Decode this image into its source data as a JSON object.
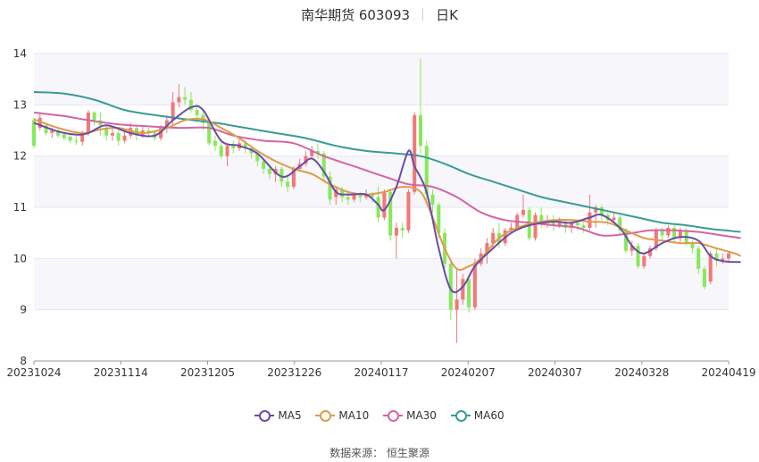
{
  "header": {
    "title": "南华期货 603093",
    "period": "日K"
  },
  "source": "数据来源： 恒生聚源",
  "colors": {
    "up": "#f0787a",
    "down": "#88e85c",
    "ma5": "#6b4ca6",
    "ma10": "#e09a4a",
    "ma30": "#d464a4",
    "ma60": "#3a9a96",
    "grid": "#e6e6f0",
    "band": "#f6f6fb"
  },
  "chart_data": {
    "type": "candlestick",
    "ylim": [
      8,
      14
    ],
    "yticks": [
      8,
      9,
      10,
      11,
      12,
      13,
      14
    ],
    "xticks": [
      "20231024",
      "20231114",
      "20231205",
      "20231226",
      "20240117",
      "20240207",
      "20240307",
      "20240328",
      "20240419"
    ],
    "legend": [
      "MA5",
      "MA10",
      "MA30",
      "MA60"
    ],
    "legend_position": "bottom",
    "candles": [
      [
        12.7,
        12.2,
        12.75,
        12.15
      ],
      [
        12.55,
        12.75,
        12.85,
        12.5
      ],
      [
        12.6,
        12.45,
        12.65,
        12.4
      ],
      [
        12.45,
        12.5,
        12.55,
        12.35
      ],
      [
        12.5,
        12.4,
        12.55,
        12.35
      ],
      [
        12.42,
        12.35,
        12.48,
        12.3
      ],
      [
        12.38,
        12.3,
        12.45,
        12.25
      ],
      [
        12.3,
        12.28,
        12.4,
        12.22
      ],
      [
        12.28,
        12.45,
        12.5,
        12.2
      ],
      [
        12.45,
        12.85,
        12.9,
        12.4
      ],
      [
        12.85,
        12.7,
        12.88,
        12.6
      ],
      [
        12.7,
        12.6,
        12.85,
        12.4
      ],
      [
        12.55,
        12.4,
        12.6,
        12.3
      ],
      [
        12.4,
        12.45,
        12.55,
        12.3
      ],
      [
        12.45,
        12.3,
        12.5,
        12.2
      ],
      [
        12.3,
        12.4,
        12.5,
        12.25
      ],
      [
        12.4,
        12.55,
        12.65,
        12.35
      ],
      [
        12.55,
        12.4,
        12.6,
        12.3
      ],
      [
        12.4,
        12.5,
        12.6,
        12.35
      ],
      [
        12.5,
        12.45,
        12.55,
        12.4
      ],
      [
        12.45,
        12.35,
        12.5,
        12.3
      ],
      [
        12.35,
        12.55,
        12.6,
        12.3
      ],
      [
        12.55,
        12.7,
        12.8,
        12.45
      ],
      [
        12.7,
        13.05,
        13.25,
        12.6
      ],
      [
        13.05,
        13.15,
        13.4,
        12.95
      ],
      [
        13.15,
        13.1,
        13.35,
        13.0
      ],
      [
        13.1,
        12.9,
        13.25,
        12.85
      ],
      [
        12.9,
        12.8,
        13.0,
        12.7
      ],
      [
        12.8,
        12.65,
        12.9,
        12.5
      ],
      [
        12.65,
        12.25,
        12.7,
        12.2
      ],
      [
        12.3,
        12.2,
        12.4,
        12.1
      ],
      [
        12.2,
        12.0,
        12.3,
        11.95
      ],
      [
        12.0,
        12.2,
        12.25,
        11.8
      ],
      [
        12.2,
        12.15,
        12.3,
        12.05
      ],
      [
        12.15,
        12.25,
        12.35,
        12.1
      ],
      [
        12.25,
        12.15,
        12.3,
        12.05
      ],
      [
        12.15,
        12.05,
        12.2,
        11.95
      ],
      [
        12.05,
        11.9,
        12.1,
        11.8
      ],
      [
        11.9,
        11.75,
        11.95,
        11.65
      ],
      [
        11.75,
        11.65,
        11.85,
        11.55
      ],
      [
        11.65,
        11.75,
        11.8,
        11.5
      ],
      [
        11.75,
        11.5,
        11.8,
        11.4
      ],
      [
        11.5,
        11.4,
        11.6,
        11.3
      ],
      [
        11.4,
        11.75,
        11.8,
        11.35
      ],
      [
        11.75,
        11.85,
        11.95,
        11.7
      ],
      [
        11.85,
        12.0,
        12.1,
        11.8
      ],
      [
        12.0,
        12.1,
        12.2,
        11.95
      ],
      [
        12.1,
        12.05,
        12.25,
        11.95
      ],
      [
        12.05,
        11.6,
        12.1,
        11.5
      ],
      [
        11.6,
        11.15,
        11.7,
        11.05
      ],
      [
        11.2,
        11.35,
        11.4,
        11.05
      ],
      [
        11.35,
        11.2,
        11.4,
        11.1
      ],
      [
        11.2,
        11.15,
        11.3,
        11.05
      ],
      [
        11.15,
        11.25,
        11.3,
        11.1
      ],
      [
        11.25,
        11.2,
        11.3,
        11.1
      ],
      [
        11.2,
        11.25,
        11.35,
        11.15
      ],
      [
        11.25,
        11.2,
        11.3,
        11.1
      ],
      [
        11.2,
        10.8,
        11.4,
        10.7
      ],
      [
        10.8,
        11.3,
        11.35,
        10.75
      ],
      [
        11.3,
        10.45,
        11.35,
        10.35
      ],
      [
        10.45,
        10.6,
        10.7,
        10.0
      ],
      [
        10.6,
        10.55,
        10.7,
        10.4
      ],
      [
        10.55,
        11.3,
        11.35,
        10.5
      ],
      [
        11.3,
        12.8,
        12.85,
        11.25
      ],
      [
        12.8,
        12.2,
        13.9,
        12.05
      ],
      [
        12.2,
        11.25,
        12.3,
        11.15
      ],
      [
        11.25,
        11.05,
        11.35,
        10.9
      ],
      [
        11.05,
        10.5,
        11.1,
        10.4
      ],
      [
        10.5,
        9.9,
        10.6,
        9.8
      ],
      [
        9.9,
        9.0,
        10.0,
        8.8
      ],
      [
        9.0,
        9.2,
        9.8,
        8.35
      ],
      [
        9.2,
        9.6,
        9.7,
        9.1
      ],
      [
        9.6,
        9.05,
        9.65,
        8.95
      ],
      [
        9.05,
        9.9,
        10.0,
        9.0
      ],
      [
        9.9,
        10.1,
        10.2,
        9.85
      ],
      [
        10.1,
        10.3,
        10.4,
        9.9
      ],
      [
        10.3,
        10.5,
        10.6,
        10.2
      ],
      [
        10.5,
        10.3,
        10.7,
        10.2
      ],
      [
        10.3,
        10.55,
        10.6,
        10.25
      ],
      [
        10.55,
        10.6,
        10.7,
        10.5
      ],
      [
        10.6,
        10.85,
        10.9,
        10.55
      ],
      [
        10.85,
        10.95,
        11.25,
        10.8
      ],
      [
        10.95,
        10.4,
        11.0,
        10.35
      ],
      [
        10.4,
        10.85,
        10.9,
        10.35
      ],
      [
        10.85,
        10.7,
        11.0,
        10.6
      ],
      [
        10.7,
        10.75,
        10.85,
        10.6
      ],
      [
        10.75,
        10.65,
        10.85,
        10.55
      ],
      [
        10.65,
        10.7,
        10.8,
        10.6
      ],
      [
        10.7,
        10.6,
        10.75,
        10.5
      ],
      [
        10.6,
        10.7,
        10.75,
        10.5
      ],
      [
        10.7,
        10.65,
        10.75,
        10.55
      ],
      [
        10.65,
        10.6,
        10.7,
        10.5
      ],
      [
        10.6,
        10.9,
        11.25,
        10.55
      ],
      [
        10.9,
        11.0,
        11.05,
        10.6
      ],
      [
        11.0,
        10.85,
        11.05,
        10.75
      ],
      [
        10.85,
        10.75,
        10.9,
        10.65
      ],
      [
        10.75,
        10.8,
        10.9,
        10.7
      ],
      [
        10.8,
        10.55,
        10.85,
        10.45
      ],
      [
        10.55,
        10.15,
        10.6,
        10.1
      ],
      [
        10.15,
        10.25,
        10.35,
        10.05
      ],
      [
        10.25,
        9.85,
        10.3,
        9.8
      ],
      [
        9.85,
        10.05,
        10.1,
        9.8
      ],
      [
        10.05,
        10.2,
        10.25,
        10.0
      ],
      [
        10.2,
        10.55,
        10.6,
        10.15
      ],
      [
        10.55,
        10.45,
        10.6,
        10.35
      ],
      [
        10.45,
        10.6,
        10.65,
        10.4
      ],
      [
        10.6,
        10.4,
        10.65,
        10.3
      ],
      [
        10.4,
        10.55,
        10.6,
        10.3
      ],
      [
        10.55,
        10.3,
        10.6,
        10.25
      ],
      [
        10.3,
        10.2,
        10.35,
        10.1
      ],
      [
        10.2,
        9.8,
        10.25,
        9.7
      ],
      [
        9.8,
        9.45,
        9.85,
        9.4
      ],
      [
        9.55,
        10.1,
        10.15,
        9.5
      ],
      [
        10.1,
        9.95,
        10.2,
        9.85
      ],
      [
        9.95,
        10.0,
        10.1,
        9.9
      ],
      [
        10.0,
        10.1,
        10.15,
        9.95
      ]
    ],
    "ma5": [
      [
        0,
        12.65
      ],
      [
        4,
        12.48
      ],
      [
        7,
        12.42
      ],
      [
        9,
        12.45
      ],
      [
        12,
        12.6
      ],
      [
        16,
        12.45
      ],
      [
        20,
        12.4
      ],
      [
        23,
        12.7
      ],
      [
        26,
        12.95
      ],
      [
        28,
        12.9
      ],
      [
        31,
        12.3
      ],
      [
        34,
        12.2
      ],
      [
        37,
        12.05
      ],
      [
        41,
        11.6
      ],
      [
        44,
        11.8
      ],
      [
        46,
        11.95
      ],
      [
        48,
        11.7
      ],
      [
        50,
        11.3
      ],
      [
        52,
        11.25
      ],
      [
        55,
        11.25
      ],
      [
        57,
        11.05
      ],
      [
        58,
        10.95
      ],
      [
        60,
        11.4
      ],
      [
        62,
        12.1
      ],
      [
        63,
        11.8
      ],
      [
        65,
        11.3
      ],
      [
        67,
        10.2
      ],
      [
        69,
        9.4
      ],
      [
        71,
        9.45
      ],
      [
        73,
        9.85
      ],
      [
        76,
        10.2
      ],
      [
        79,
        10.5
      ],
      [
        82,
        10.65
      ],
      [
        86,
        10.72
      ],
      [
        89,
        10.7
      ],
      [
        92,
        10.8
      ],
      [
        94,
        10.85
      ],
      [
        97,
        10.6
      ],
      [
        99,
        10.25
      ],
      [
        101,
        10.1
      ],
      [
        104,
        10.3
      ],
      [
        107,
        10.42
      ],
      [
        110,
        10.35
      ],
      [
        112,
        10.05
      ],
      [
        114,
        9.95
      ],
      [
        117,
        9.93
      ]
    ],
    "ma10": [
      [
        0,
        12.72
      ],
      [
        4,
        12.55
      ],
      [
        8,
        12.45
      ],
      [
        11,
        12.52
      ],
      [
        14,
        12.55
      ],
      [
        18,
        12.45
      ],
      [
        22,
        12.55
      ],
      [
        25,
        12.7
      ],
      [
        28,
        12.72
      ],
      [
        31,
        12.55
      ],
      [
        34,
        12.35
      ],
      [
        37,
        12.1
      ],
      [
        40,
        11.9
      ],
      [
        43,
        11.75
      ],
      [
        46,
        11.65
      ],
      [
        49,
        11.45
      ],
      [
        52,
        11.3
      ],
      [
        55,
        11.25
      ],
      [
        58,
        11.3
      ],
      [
        61,
        11.4
      ],
      [
        64,
        11.3
      ],
      [
        66,
        10.8
      ],
      [
        68,
        10.2
      ],
      [
        70,
        9.8
      ],
      [
        72,
        9.85
      ],
      [
        74,
        10.0
      ],
      [
        77,
        10.4
      ],
      [
        80,
        10.6
      ],
      [
        83,
        10.7
      ],
      [
        86,
        10.75
      ],
      [
        89,
        10.75
      ],
      [
        92,
        10.72
      ],
      [
        95,
        10.7
      ],
      [
        98,
        10.55
      ],
      [
        101,
        10.4
      ],
      [
        104,
        10.35
      ],
      [
        107,
        10.3
      ],
      [
        110,
        10.3
      ],
      [
        113,
        10.2
      ],
      [
        116,
        10.1
      ],
      [
        117,
        10.05
      ]
    ],
    "ma30": [
      [
        0,
        12.85
      ],
      [
        5,
        12.78
      ],
      [
        9,
        12.7
      ],
      [
        14,
        12.62
      ],
      [
        19,
        12.58
      ],
      [
        24,
        12.55
      ],
      [
        29,
        12.55
      ],
      [
        33,
        12.4
      ],
      [
        38,
        12.3
      ],
      [
        43,
        12.25
      ],
      [
        48,
        12.0
      ],
      [
        53,
        11.8
      ],
      [
        58,
        11.6
      ],
      [
        62,
        11.45
      ],
      [
        66,
        11.4
      ],
      [
        70,
        11.2
      ],
      [
        74,
        10.9
      ],
      [
        78,
        10.75
      ],
      [
        82,
        10.7
      ],
      [
        86,
        10.65
      ],
      [
        90,
        10.6
      ],
      [
        94,
        10.45
      ],
      [
        98,
        10.48
      ],
      [
        102,
        10.55
      ],
      [
        106,
        10.55
      ],
      [
        110,
        10.52
      ],
      [
        114,
        10.45
      ],
      [
        117,
        10.4
      ]
    ],
    "ma60": [
      [
        0,
        13.25
      ],
      [
        5,
        13.22
      ],
      [
        10,
        13.1
      ],
      [
        15,
        12.9
      ],
      [
        20,
        12.8
      ],
      [
        25,
        12.72
      ],
      [
        30,
        12.65
      ],
      [
        35,
        12.55
      ],
      [
        40,
        12.45
      ],
      [
        45,
        12.35
      ],
      [
        50,
        12.2
      ],
      [
        55,
        12.1
      ],
      [
        60,
        12.05
      ],
      [
        64,
        12.0
      ],
      [
        68,
        11.85
      ],
      [
        72,
        11.65
      ],
      [
        76,
        11.5
      ],
      [
        80,
        11.35
      ],
      [
        84,
        11.2
      ],
      [
        88,
        11.1
      ],
      [
        92,
        11.0
      ],
      [
        96,
        10.9
      ],
      [
        100,
        10.8
      ],
      [
        104,
        10.7
      ],
      [
        108,
        10.65
      ],
      [
        112,
        10.58
      ],
      [
        117,
        10.52
      ]
    ]
  }
}
